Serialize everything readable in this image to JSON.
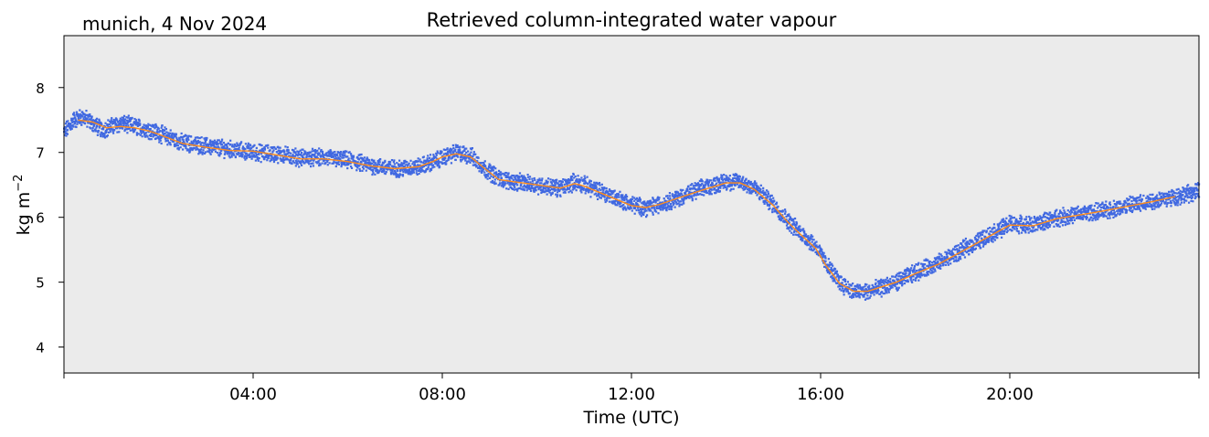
{
  "chart_data": {
    "type": "line",
    "title": "Retrieved column-integrated water vapour",
    "subtitle": "munich, 4 Nov 2024",
    "xlabel": "Time (UTC)",
    "ylabel": "kg m−2",
    "ylabel_base": "kg m",
    "ylabel_sup": "−2",
    "xlim": [
      0,
      24
    ],
    "ylim": [
      3.6,
      8.8
    ],
    "x_ticks": [
      {
        "value": 0,
        "label": ""
      },
      {
        "value": 4,
        "label": "04:00"
      },
      {
        "value": 8,
        "label": "08:00"
      },
      {
        "value": 12,
        "label": "12:00"
      },
      {
        "value": 16,
        "label": "16:00"
      },
      {
        "value": 20,
        "label": "20:00"
      },
      {
        "value": 24,
        "label": ""
      }
    ],
    "y_ticks": [
      {
        "value": 4,
        "label": "4"
      },
      {
        "value": 5,
        "label": "5"
      },
      {
        "value": 6,
        "label": "6"
      },
      {
        "value": 7,
        "label": "7"
      },
      {
        "value": 8,
        "label": "8"
      }
    ],
    "plot_background": "#ebebeb",
    "grid": false,
    "series": [
      {
        "kind": "raw-scatter",
        "color": "#4169e1",
        "x": [
          0.0,
          0.2,
          0.4,
          0.6,
          0.8,
          1.0,
          1.2,
          1.5,
          1.8,
          2.0,
          2.5,
          3.0,
          3.5,
          4.0,
          4.5,
          5.0,
          5.5,
          6.0,
          6.5,
          7.0,
          7.5,
          7.8,
          8.0,
          8.3,
          8.6,
          8.9,
          9.2,
          9.5,
          10.0,
          10.5,
          10.8,
          11.0,
          11.5,
          12.0,
          12.3,
          12.6,
          13.0,
          13.5,
          14.0,
          14.3,
          14.6,
          15.0,
          15.3,
          15.6,
          15.9,
          16.1,
          16.4,
          16.7,
          17.0,
          17.3,
          17.6,
          18.0,
          18.5,
          19.0,
          19.5,
          20.0,
          20.5,
          21.0,
          21.5,
          22.0,
          22.5,
          23.0,
          23.5,
          24.0
        ],
        "y": [
          7.3,
          7.5,
          7.55,
          7.45,
          7.35,
          7.4,
          7.45,
          7.4,
          7.35,
          7.3,
          7.15,
          7.1,
          7.05,
          7.0,
          6.98,
          6.92,
          6.92,
          6.88,
          6.8,
          6.75,
          6.78,
          6.85,
          6.92,
          7.0,
          6.95,
          6.75,
          6.6,
          6.55,
          6.5,
          6.45,
          6.55,
          6.5,
          6.35,
          6.2,
          6.15,
          6.2,
          6.3,
          6.45,
          6.55,
          6.55,
          6.45,
          6.2,
          5.95,
          5.75,
          5.55,
          5.3,
          5.0,
          4.85,
          4.85,
          4.92,
          5.0,
          5.15,
          5.3,
          5.5,
          5.7,
          5.9,
          5.88,
          6.0,
          6.05,
          6.1,
          6.18,
          6.25,
          6.32,
          6.4
        ]
      },
      {
        "kind": "smoothed-line",
        "color": "#ff8c1a",
        "x": [
          0.3,
          0.6,
          0.9,
          1.2,
          1.5,
          1.8,
          2.0,
          2.5,
          3.0,
          3.5,
          4.0,
          4.5,
          5.0,
          5.5,
          6.0,
          6.5,
          7.0,
          7.5,
          7.8,
          8.0,
          8.3,
          8.6,
          8.9,
          9.2,
          9.5,
          10.0,
          10.5,
          10.8,
          11.0,
          11.5,
          12.0,
          12.3,
          12.6,
          13.0,
          13.5,
          14.0,
          14.3,
          14.6,
          15.0,
          15.3,
          15.6,
          15.9,
          16.1,
          16.4,
          16.7,
          17.0,
          17.3,
          17.6,
          18.0,
          18.5,
          19.0,
          19.5,
          20.0,
          20.5,
          21.0,
          21.5,
          22.0,
          22.5,
          23.0,
          23.5
        ],
        "y": [
          7.5,
          7.47,
          7.38,
          7.4,
          7.38,
          7.33,
          7.28,
          7.14,
          7.08,
          7.03,
          7.02,
          6.96,
          6.9,
          6.9,
          6.86,
          6.79,
          6.75,
          6.78,
          6.86,
          6.93,
          6.98,
          6.93,
          6.75,
          6.58,
          6.55,
          6.5,
          6.45,
          6.52,
          6.48,
          6.33,
          6.18,
          6.15,
          6.2,
          6.3,
          6.42,
          6.53,
          6.53,
          6.43,
          6.18,
          5.93,
          5.72,
          5.52,
          5.27,
          4.98,
          4.86,
          4.86,
          4.93,
          5.0,
          5.13,
          5.28,
          5.48,
          5.68,
          5.88,
          5.87,
          5.98,
          6.04,
          6.1,
          6.17,
          6.24,
          6.32
        ]
      }
    ]
  }
}
